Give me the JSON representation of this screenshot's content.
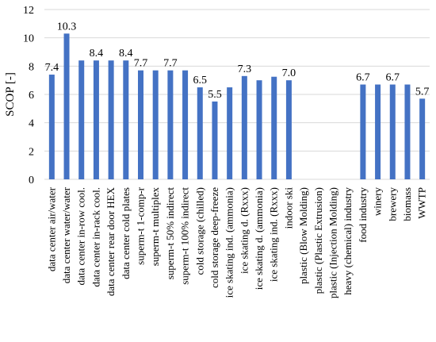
{
  "chart_data": {
    "type": "bar",
    "title": "",
    "xlabel": "",
    "ylabel": "SCOP [-]",
    "ylim": [
      0,
      12
    ],
    "yticks": [
      0,
      2,
      4,
      6,
      8,
      10,
      12
    ],
    "grid": "horizontal",
    "legend": "none",
    "bar_color": "#4472C4",
    "grid_color": "#D9D9D9",
    "categories": [
      "data center air/water",
      "data center water/water",
      "data center in-row cool.",
      "data center in-rack cool.",
      "data center rear door HEX",
      "data center cold plates",
      "superm-t 1-comp-r",
      "superm-t multiplex",
      "superm-t 50% indirect",
      "superm-t 100% indirect",
      "cold storage (chilled)",
      "cold storage deep-freeze",
      "ice skating ind. (ammonia)",
      "ice skating d. (Rxxx)",
      "ice skating d. (ammonia)",
      "ice skating ind. (Rxxx)",
      "indoor ski",
      "plastic (Blow Molding)",
      "plastic (Plastic Extrusion)",
      "plastic (Injection Molding)",
      "heavy (chemical) industry",
      "food industry",
      "winery",
      "brewery",
      "biomass",
      "WWTP"
    ],
    "values": [
      7.4,
      10.3,
      8.4,
      8.4,
      8.4,
      8.4,
      7.7,
      7.7,
      7.7,
      7.7,
      6.5,
      5.5,
      6.5,
      7.3,
      7.0,
      7.25,
      7.0,
      null,
      null,
      null,
      null,
      6.7,
      6.7,
      6.7,
      6.7,
      5.7
    ],
    "data_labels": [
      "7.4",
      "10.3",
      "",
      "8.4",
      "",
      "8.4",
      "7.7",
      "",
      "7.7",
      "",
      "6.5",
      "5.5",
      "",
      "7.3",
      "",
      "",
      "7.0",
      "",
      "",
      "",
      "",
      "6.7",
      "",
      "6.7",
      "",
      "5.7"
    ]
  }
}
